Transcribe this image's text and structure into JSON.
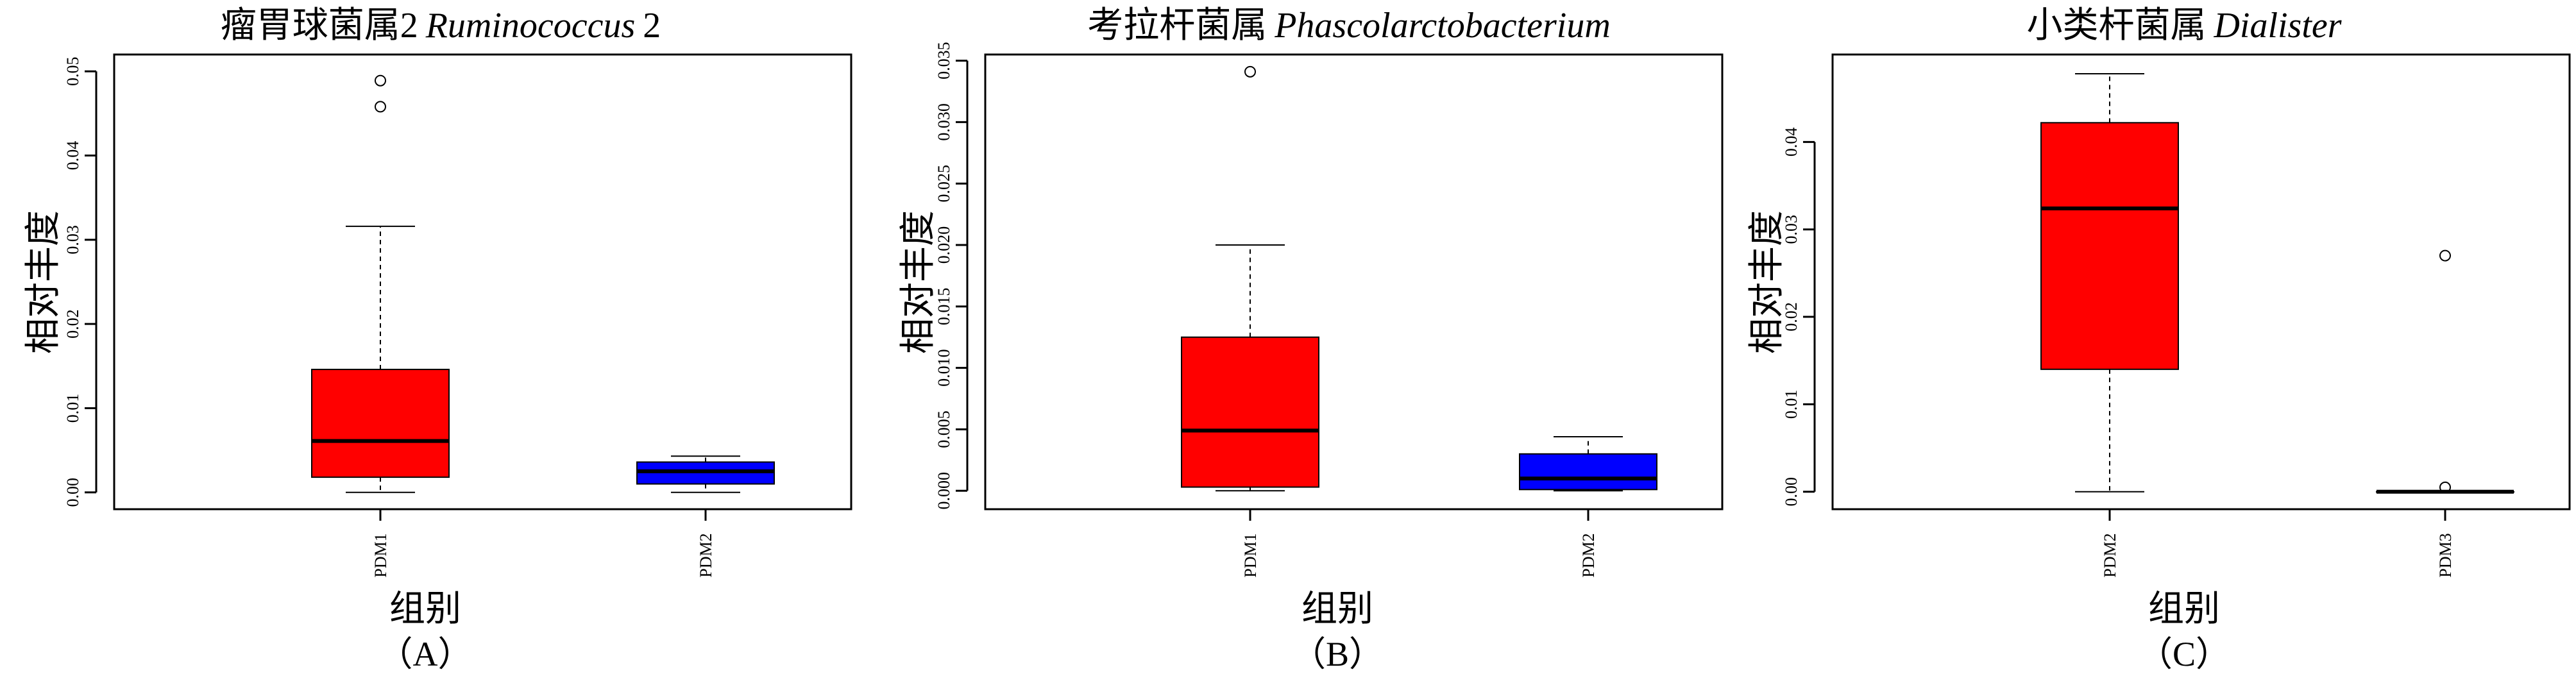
{
  "panels": [
    {
      "title_cn": "瘤胃球菌属2",
      "title_latin": "Ruminococcus",
      "title_suffix": "2",
      "ylabel": "相对丰度",
      "xlabel": "组别",
      "panel_label": "（A）"
    },
    {
      "title_cn": "考拉杆菌属",
      "title_latin": "Phascolarctobacterium",
      "title_suffix": "",
      "ylabel": "相对丰度",
      "xlabel": "组别",
      "panel_label": "（B）"
    },
    {
      "title_cn": "小类杆菌属",
      "title_latin": "Dialister",
      "title_suffix": "",
      "ylabel": "相对丰度",
      "xlabel": "组别",
      "panel_label": "（C）"
    }
  ],
  "colors": {
    "box_fills": [
      "#ff0000",
      "#0000ff"
    ],
    "median_line": "#000000",
    "axis": "#000000",
    "background": "#ffffff"
  },
  "chart_data": [
    {
      "type": "boxplot",
      "ylim": [
        -0.002,
        0.052
      ],
      "yticks": [
        0.0,
        0.01,
        0.02,
        0.03,
        0.04,
        0.05
      ],
      "ytick_labels": [
        "0.00",
        "0.01",
        "0.02",
        "0.03",
        "0.04",
        "0.05"
      ],
      "groups": [
        {
          "label": "PDM1",
          "fill": "#ff0000",
          "whisker_low": 0.0,
          "q1": 0.0018,
          "median": 0.0061,
          "q3": 0.0146,
          "whisker_high": 0.0316,
          "outliers": [
            0.0458,
            0.0489
          ]
        },
        {
          "label": "PDM2",
          "fill": "#0000ff",
          "whisker_low": 0.0,
          "q1": 0.001,
          "median": 0.0025,
          "q3": 0.0036,
          "whisker_high": 0.0043,
          "outliers": []
        }
      ]
    },
    {
      "type": "boxplot",
      "ylim": [
        -0.0015,
        0.0355
      ],
      "yticks": [
        0.0,
        0.005,
        0.01,
        0.015,
        0.02,
        0.025,
        0.03,
        0.035
      ],
      "ytick_labels": [
        "0.000",
        "0.005",
        "0.010",
        "0.015",
        "0.020",
        "0.025",
        "0.030",
        "0.035"
      ],
      "groups": [
        {
          "label": "PDM1",
          "fill": "#ff0000",
          "whisker_low": 0.0,
          "q1": 0.0003,
          "median": 0.0049,
          "q3": 0.0125,
          "whisker_high": 0.02,
          "outliers": [
            0.0341
          ]
        },
        {
          "label": "PDM2",
          "fill": "#0000ff",
          "whisker_low": 0.0,
          "q1": 0.0001,
          "median": 0.001,
          "q3": 0.003,
          "whisker_high": 0.0044,
          "outliers": []
        }
      ]
    },
    {
      "type": "boxplot",
      "ylim": [
        -0.002,
        0.05
      ],
      "yticks": [
        0.0,
        0.01,
        0.02,
        0.03,
        0.04
      ],
      "ytick_labels": [
        "0.00",
        "0.01",
        "0.02",
        "0.03",
        "0.04"
      ],
      "groups": [
        {
          "label": "PDM2",
          "fill": "#ff0000",
          "whisker_low": 0.0,
          "q1": 0.014,
          "median": 0.0324,
          "q3": 0.0422,
          "whisker_high": 0.0478,
          "outliers": []
        },
        {
          "label": "PDM3",
          "fill": "#0000ff",
          "whisker_low": 0.0,
          "q1": 0.0,
          "median": 0.0,
          "q3": 0.0,
          "whisker_high": 0.0,
          "outliers": [
            0.0005,
            0.027
          ]
        }
      ]
    }
  ]
}
